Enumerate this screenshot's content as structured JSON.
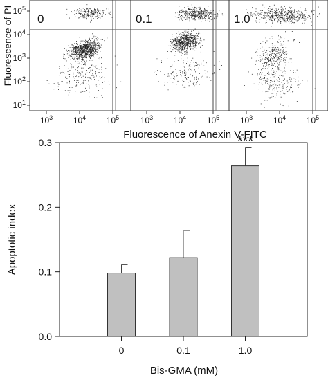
{
  "flow_panel": {
    "ylabel": "Fluorescence of PI",
    "xlabel": "Fluorescence of Anexin V-FITC",
    "y_ticks": [
      {
        "base": "10",
        "exp": "1"
      },
      {
        "base": "10",
        "exp": "2"
      },
      {
        "base": "10",
        "exp": "3"
      },
      {
        "base": "10",
        "exp": "4"
      },
      {
        "base": "10",
        "exp": "5"
      }
    ],
    "x_ticks": [
      {
        "base": "10",
        "exp": "3"
      },
      {
        "base": "10",
        "exp": "4"
      },
      {
        "base": "10",
        "exp": "5"
      }
    ],
    "panels": [
      {
        "label": "0"
      },
      {
        "label": "0.1"
      },
      {
        "label": "1.0"
      }
    ],
    "scale": "log",
    "gates": {
      "x": 100000,
      "y": 16000
    }
  },
  "chart_data": {
    "type": "bar",
    "title": "",
    "xlabel": "Bis-GMA (mM)",
    "ylabel": "Apoptotic index",
    "categories": [
      "0",
      "0.1",
      "1.0"
    ],
    "values": [
      0.098,
      0.122,
      0.264
    ],
    "errors": [
      0.013,
      0.042,
      0.028
    ],
    "ylim": [
      0.0,
      0.3
    ],
    "y_ticks": [
      "0.0",
      "0.1",
      "0.2",
      "0.3"
    ],
    "annotations": [
      {
        "category": "1.0",
        "text": "***"
      }
    ],
    "bar_color": "#c0c0c0",
    "grid": false
  }
}
